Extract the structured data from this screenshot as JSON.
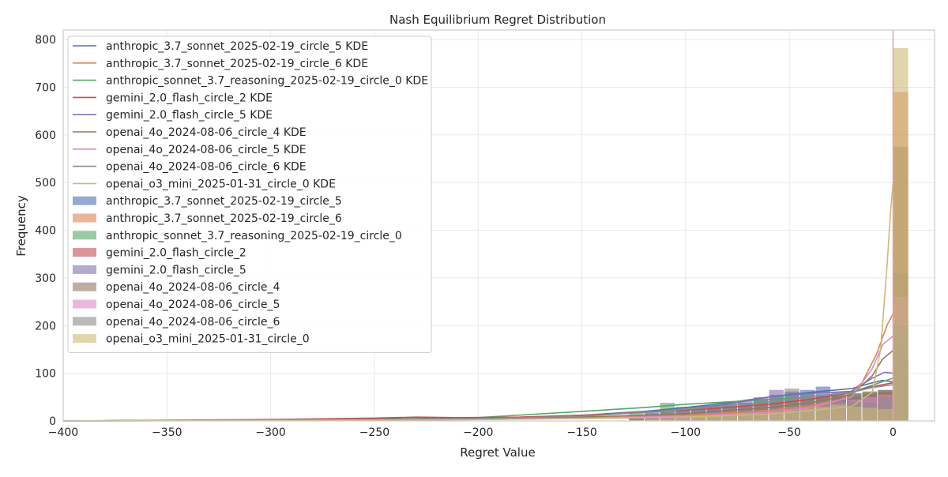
{
  "chart_data": {
    "type": "histogram",
    "title": "Nash Equilibrium Regret Distribution",
    "xlabel": "Regret Value",
    "ylabel": "Frequency",
    "xlim": [
      -400,
      20
    ],
    "ylim": [
      0,
      820
    ],
    "xticks": [
      -400,
      -350,
      -300,
      -250,
      -200,
      -150,
      -100,
      -50,
      0
    ],
    "xtick_labels": [
      "−400",
      "−350",
      "−300",
      "−250",
      "−200",
      "−150",
      "−100",
      "−50",
      "0"
    ],
    "yticks": [
      0,
      100,
      200,
      300,
      400,
      500,
      600,
      700,
      800
    ],
    "grid": true,
    "legend_position": "upper-left",
    "reference_line_x": 0,
    "bin_width": 7.5,
    "bin_edges_start": -127.5,
    "histogram_series": [
      {
        "name": "anthropic_3.7_sonnet_2025-02-19_circle_5",
        "color": "#4c72b0",
        "values": [
          8,
          20,
          18,
          24,
          26,
          30,
          32,
          38,
          44,
          55,
          60,
          65,
          72,
          60,
          58,
          60,
          65,
          310
        ]
      },
      {
        "name": "anthropic_3.7_sonnet_2025-02-19_circle_6",
        "color": "#dd8452",
        "values": [
          4,
          6,
          8,
          10,
          12,
          15,
          18,
          20,
          24,
          30,
          35,
          38,
          40,
          42,
          48,
          52,
          55,
          690
        ]
      },
      {
        "name": "anthropic_sonnet_3.7_reasoning_2025-02-19_circle_0",
        "color": "#55a868",
        "values": [
          18,
          15,
          38,
          30,
          32,
          28,
          30,
          35,
          40,
          42,
          45,
          48,
          50,
          52,
          55,
          60,
          62,
          150
        ]
      },
      {
        "name": "gemini_2.0_flash_circle_2",
        "color": "#c44e52",
        "values": [
          5,
          8,
          10,
          12,
          14,
          16,
          20,
          22,
          26,
          30,
          34,
          38,
          42,
          45,
          50,
          55,
          60,
          120
        ]
      },
      {
        "name": "gemini_2.0_flash_circle_5",
        "color": "#8172b3",
        "values": [
          10,
          14,
          18,
          22,
          28,
          32,
          38,
          42,
          50,
          65,
          62,
          58,
          55,
          52,
          50,
          48,
          50,
          140
        ]
      },
      {
        "name": "openai_4o_2024-08-06_circle_4",
        "color": "#937860",
        "values": [
          6,
          10,
          12,
          15,
          18,
          22,
          26,
          30,
          35,
          40,
          45,
          48,
          52,
          55,
          58,
          62,
          65,
          575
        ]
      },
      {
        "name": "openai_4o_2024-08-06_circle_5",
        "color": "#da8bc3",
        "values": [
          3,
          5,
          6,
          8,
          10,
          12,
          15,
          18,
          20,
          24,
          28,
          32,
          36,
          40,
          45,
          50,
          55,
          260
        ]
      },
      {
        "name": "openai_4o_2024-08-06_circle_6",
        "color": "#8c8c8c",
        "values": [
          12,
          16,
          20,
          24,
          28,
          30,
          34,
          38,
          42,
          50,
          68,
          55,
          48,
          44,
          40,
          38,
          50,
          200
        ]
      },
      {
        "name": "openai_o3_mini_2025-01-31_circle_0",
        "color": "#ccb974",
        "values": [
          2,
          4,
          5,
          6,
          8,
          10,
          12,
          14,
          16,
          18,
          22,
          26,
          30,
          34,
          30,
          28,
          25,
          782
        ]
      }
    ],
    "kde_series": [
      {
        "name": "anthropic_3.7_sonnet_2025-02-19_circle_5 KDE",
        "color": "#4c72b0",
        "points": [
          [
            -400,
            0
          ],
          [
            -300,
            2
          ],
          [
            -200,
            5
          ],
          [
            -150,
            12
          ],
          [
            -120,
            20
          ],
          [
            -100,
            28
          ],
          [
            -80,
            38
          ],
          [
            -60,
            50
          ],
          [
            -40,
            60
          ],
          [
            -20,
            68
          ],
          [
            -10,
            80
          ],
          [
            -5,
            85
          ],
          [
            0,
            82
          ]
        ]
      },
      {
        "name": "anthropic_3.7_sonnet_2025-02-19_circle_6 KDE",
        "color": "#dd8452",
        "points": [
          [
            -400,
            0
          ],
          [
            -300,
            1
          ],
          [
            -200,
            3
          ],
          [
            -150,
            6
          ],
          [
            -100,
            12
          ],
          [
            -60,
            22
          ],
          [
            -40,
            32
          ],
          [
            -25,
            45
          ],
          [
            -15,
            80
          ],
          [
            -8,
            140
          ],
          [
            -3,
            200
          ],
          [
            0,
            225
          ]
        ]
      },
      {
        "name": "anthropic_sonnet_3.7_reasoning_2025-02-19_circle_0 KDE",
        "color": "#55a868",
        "points": [
          [
            -400,
            0
          ],
          [
            -300,
            2
          ],
          [
            -250,
            4
          ],
          [
            -200,
            7
          ],
          [
            -150,
            20
          ],
          [
            -120,
            28
          ],
          [
            -100,
            35
          ],
          [
            -80,
            40
          ],
          [
            -60,
            45
          ],
          [
            -40,
            50
          ],
          [
            -20,
            60
          ],
          [
            -10,
            75
          ],
          [
            0,
            90
          ]
        ]
      },
      {
        "name": "gemini_2.0_flash_circle_2 KDE",
        "color": "#c44e52",
        "points": [
          [
            -400,
            0
          ],
          [
            -300,
            3
          ],
          [
            -250,
            6
          ],
          [
            -230,
            8
          ],
          [
            -210,
            7
          ],
          [
            -180,
            8
          ],
          [
            -150,
            12
          ],
          [
            -120,
            18
          ],
          [
            -90,
            25
          ],
          [
            -60,
            35
          ],
          [
            -40,
            45
          ],
          [
            -20,
            60
          ],
          [
            -10,
            72
          ],
          [
            0,
            80
          ]
        ]
      },
      {
        "name": "gemini_2.0_flash_circle_5 KDE",
        "color": "#8172b3",
        "points": [
          [
            -400,
            0
          ],
          [
            -300,
            2
          ],
          [
            -200,
            5
          ],
          [
            -150,
            10
          ],
          [
            -120,
            18
          ],
          [
            -100,
            25
          ],
          [
            -80,
            35
          ],
          [
            -60,
            50
          ],
          [
            -40,
            58
          ],
          [
            -20,
            62
          ],
          [
            -10,
            90
          ],
          [
            -4,
            102
          ],
          [
            0,
            100
          ]
        ]
      },
      {
        "name": "openai_4o_2024-08-06_circle_4 KDE",
        "color": "#937860",
        "points": [
          [
            -400,
            0
          ],
          [
            -300,
            2
          ],
          [
            -200,
            4
          ],
          [
            -150,
            8
          ],
          [
            -100,
            15
          ],
          [
            -60,
            28
          ],
          [
            -40,
            38
          ],
          [
            -20,
            55
          ],
          [
            -10,
            95
          ],
          [
            -5,
            130
          ],
          [
            0,
            148
          ]
        ]
      },
      {
        "name": "openai_4o_2024-08-06_circle_5 KDE",
        "color": "#da8bc3",
        "points": [
          [
            -400,
            0
          ],
          [
            -300,
            1
          ],
          [
            -200,
            3
          ],
          [
            -150,
            6
          ],
          [
            -100,
            10
          ],
          [
            -60,
            18
          ],
          [
            -40,
            28
          ],
          [
            -20,
            50
          ],
          [
            -10,
            110
          ],
          [
            -5,
            160
          ],
          [
            0,
            178
          ]
        ]
      },
      {
        "name": "openai_4o_2024-08-06_circle_6 KDE",
        "color": "#8c8c8c",
        "points": [
          [
            -400,
            0
          ],
          [
            -300,
            2
          ],
          [
            -200,
            4
          ],
          [
            -150,
            10
          ],
          [
            -120,
            18
          ],
          [
            -90,
            28
          ],
          [
            -60,
            40
          ],
          [
            -40,
            50
          ],
          [
            -20,
            60
          ],
          [
            -10,
            70
          ],
          [
            0,
            76
          ]
        ]
      },
      {
        "name": "openai_o3_mini_2025-01-31_circle_0 KDE",
        "color": "#ccb974",
        "points": [
          [
            -400,
            0
          ],
          [
            -300,
            1
          ],
          [
            -200,
            3
          ],
          [
            -150,
            5
          ],
          [
            -100,
            8
          ],
          [
            -60,
            14
          ],
          [
            -40,
            22
          ],
          [
            -20,
            30
          ],
          [
            -10,
            60
          ],
          [
            -6,
            150
          ],
          [
            -3,
            320
          ],
          [
            -1,
            450
          ],
          [
            0,
            498
          ]
        ]
      }
    ],
    "legend_entries": [
      {
        "label": "anthropic_3.7_sonnet_2025-02-19_circle_5 KDE",
        "kind": "line",
        "color": "#4c72b0"
      },
      {
        "label": "anthropic_3.7_sonnet_2025-02-19_circle_6 KDE",
        "kind": "line",
        "color": "#dd8452"
      },
      {
        "label": "anthropic_sonnet_3.7_reasoning_2025-02-19_circle_0 KDE",
        "kind": "line",
        "color": "#55a868"
      },
      {
        "label": "gemini_2.0_flash_circle_2 KDE",
        "kind": "line",
        "color": "#c44e52"
      },
      {
        "label": "gemini_2.0_flash_circle_5 KDE",
        "kind": "line",
        "color": "#8172b3"
      },
      {
        "label": "openai_4o_2024-08-06_circle_4 KDE",
        "kind": "line",
        "color": "#937860"
      },
      {
        "label": "openai_4o_2024-08-06_circle_5 KDE",
        "kind": "line",
        "color": "#da8bc3"
      },
      {
        "label": "openai_4o_2024-08-06_circle_6 KDE",
        "kind": "line",
        "color": "#8c8c8c"
      },
      {
        "label": "openai_o3_mini_2025-01-31_circle_0 KDE",
        "kind": "line",
        "color": "#ccb974"
      },
      {
        "label": "anthropic_3.7_sonnet_2025-02-19_circle_5",
        "kind": "patch",
        "color": "#4c72b0"
      },
      {
        "label": "anthropic_3.7_sonnet_2025-02-19_circle_6",
        "kind": "patch",
        "color": "#dd8452"
      },
      {
        "label": "anthropic_sonnet_3.7_reasoning_2025-02-19_circle_0",
        "kind": "patch",
        "color": "#55a868"
      },
      {
        "label": "gemini_2.0_flash_circle_2",
        "kind": "patch",
        "color": "#c44e52"
      },
      {
        "label": "gemini_2.0_flash_circle_5",
        "kind": "patch",
        "color": "#8172b3"
      },
      {
        "label": "openai_4o_2024-08-06_circle_4",
        "kind": "patch",
        "color": "#937860"
      },
      {
        "label": "openai_4o_2024-08-06_circle_5",
        "kind": "patch",
        "color": "#da8bc3"
      },
      {
        "label": "openai_4o_2024-08-06_circle_6",
        "kind": "patch",
        "color": "#8c8c8c"
      },
      {
        "label": "openai_o3_mini_2025-01-31_circle_0",
        "kind": "patch",
        "color": "#ccb974"
      }
    ]
  }
}
